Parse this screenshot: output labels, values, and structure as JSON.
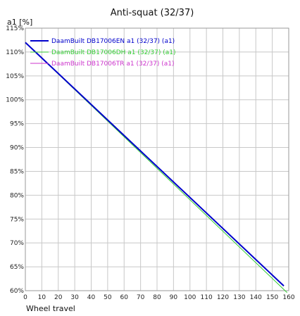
{
  "chart_data": {
    "type": "line",
    "title": "Anti-squat (32/37)",
    "ylabel": "a1 [%]",
    "xlabel": "Wheel travel",
    "xlim": [
      0,
      160
    ],
    "ylim": [
      60,
      115
    ],
    "x_ticks": [
      0,
      10,
      20,
      30,
      40,
      50,
      60,
      70,
      80,
      90,
      100,
      110,
      120,
      130,
      140,
      150,
      160
    ],
    "y_ticks": [
      60,
      65,
      70,
      75,
      80,
      85,
      90,
      95,
      100,
      105,
      110,
      115
    ],
    "y_tick_labels": [
      "60%",
      "65%",
      "70%",
      "75%",
      "80%",
      "85%",
      "90%",
      "95%",
      "100%",
      "105%",
      "110%",
      "115%"
    ],
    "grid": true,
    "legend_position": "top-left",
    "series": [
      {
        "name": "DaamBuilt DB17006EN a1 (32/37) (a1)",
        "color": "#0000cc",
        "x": [
          0,
          157
        ],
        "y": [
          112,
          61
        ]
      },
      {
        "name": "DaamBuilt DB17006DH a1 (32/37) (a1)",
        "color": "#33cc33",
        "x": [
          0,
          159
        ],
        "y": [
          112,
          59.6
        ]
      },
      {
        "name": "DaamBuilt DB17006TR a1 (32/37) (a1)",
        "color": "#cc33cc",
        "x": [
          0,
          157
        ],
        "y": [
          112,
          61
        ]
      }
    ]
  }
}
